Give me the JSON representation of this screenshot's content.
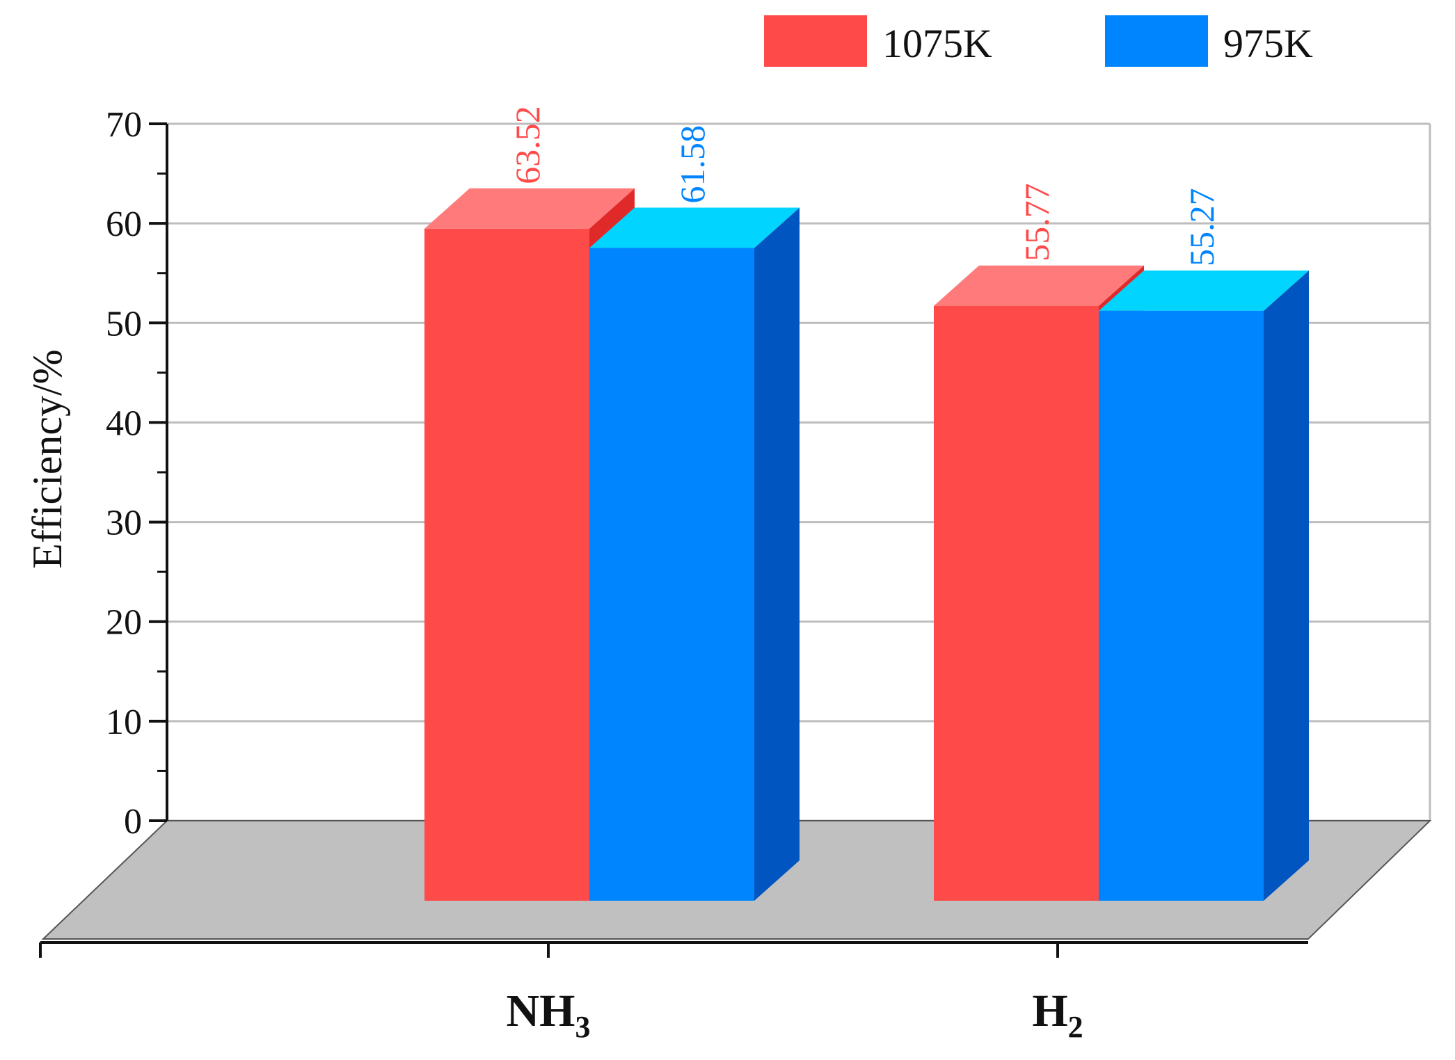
{
  "chart_data": {
    "type": "bar",
    "categories": [
      {
        "base": "NH",
        "sub": "3"
      },
      {
        "base": "H",
        "sub": "2"
      }
    ],
    "series": [
      {
        "name": "1075K",
        "values": [
          63.52,
          55.77
        ],
        "color": "#ff4a4a",
        "top_color": "#ff7b7b",
        "side_color": "#e02a2a"
      },
      {
        "name": "975K",
        "values": [
          61.58,
          55.27
        ],
        "color": "#0085ff",
        "top_color": "#00d4ff",
        "side_color": "#0055c0"
      }
    ],
    "ylabel": "Efficiency/%",
    "ylim": [
      0,
      70
    ],
    "yticks": [
      "0",
      "10",
      "20",
      "30",
      "40",
      "50",
      "60",
      "70"
    ],
    "grid": true,
    "legend_position": "top-right",
    "floor_color": "#c0c0c0"
  }
}
